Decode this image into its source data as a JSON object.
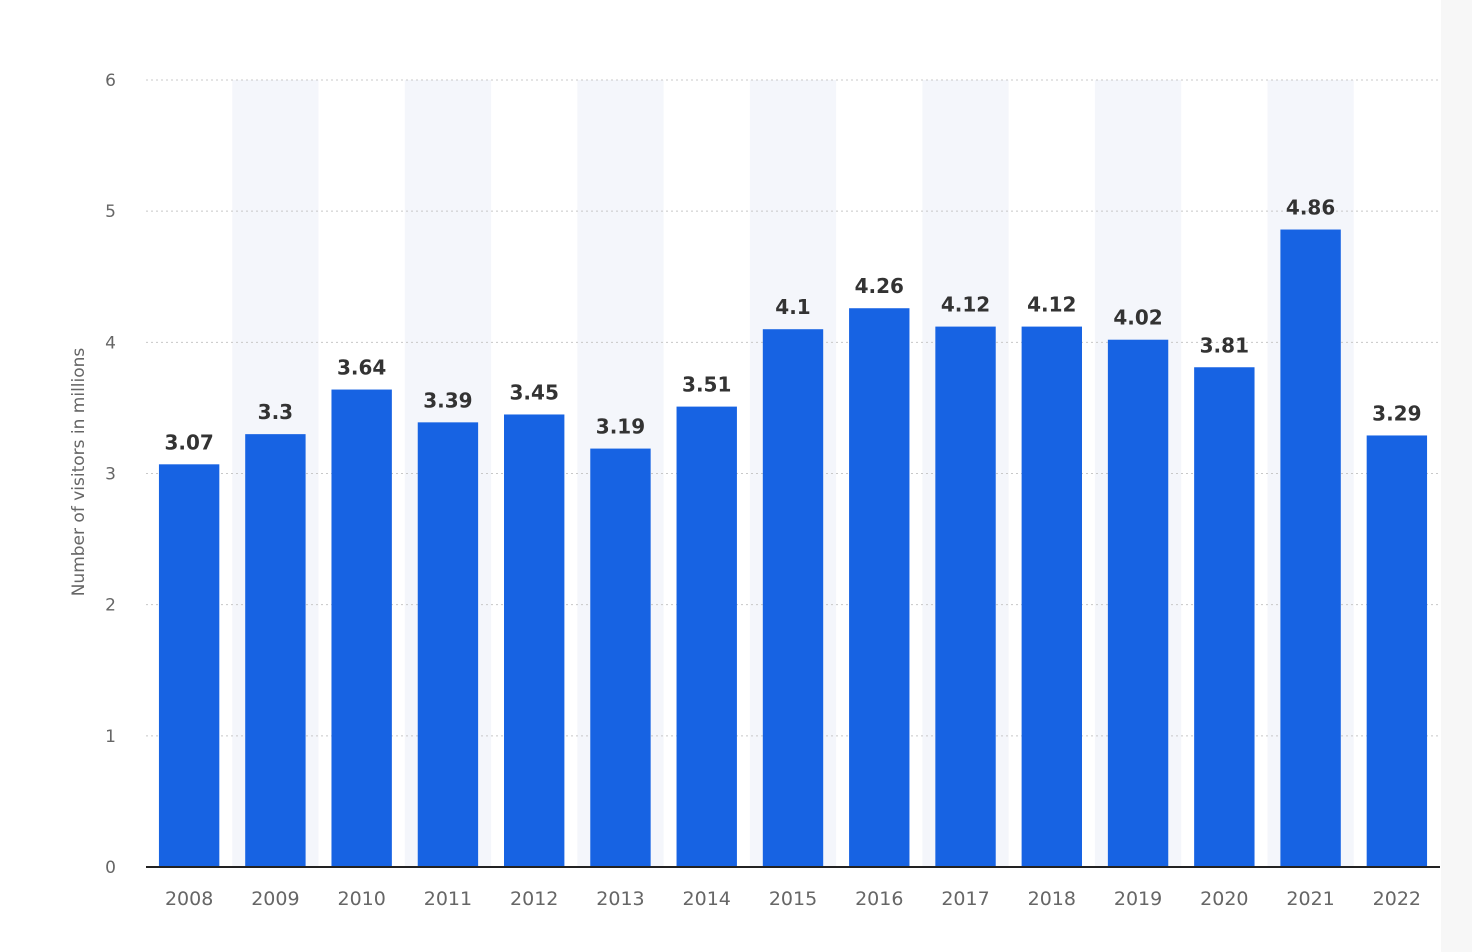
{
  "chart_data": {
    "type": "bar",
    "title": "",
    "xlabel": "",
    "ylabel": "Number of visitors in millions",
    "categories": [
      "2008",
      "2009",
      "2010",
      "2011",
      "2012",
      "2013",
      "2014",
      "2015",
      "2016",
      "2017",
      "2018",
      "2019",
      "2020",
      "2021",
      "2022"
    ],
    "values": [
      3.07,
      3.3,
      3.64,
      3.39,
      3.45,
      3.19,
      3.51,
      4.1,
      4.26,
      4.12,
      4.12,
      4.02,
      3.81,
      4.86,
      3.29
    ],
    "value_labels": [
      "3.07",
      "3.3",
      "3.64",
      "3.39",
      "3.45",
      "3.19",
      "3.51",
      "4.1",
      "4.26",
      "4.12",
      "4.12",
      "4.02",
      "3.81",
      "4.86",
      "3.29"
    ],
    "yticks": [
      "0",
      "1",
      "2",
      "3",
      "4",
      "5",
      "6"
    ],
    "ylim": [
      0,
      6
    ],
    "grid": true,
    "legend": "none",
    "colors": {
      "bar": "#1763e3",
      "band": "#f4f6fb",
      "grid": "#c8c8c8",
      "axis": "#222222"
    }
  }
}
